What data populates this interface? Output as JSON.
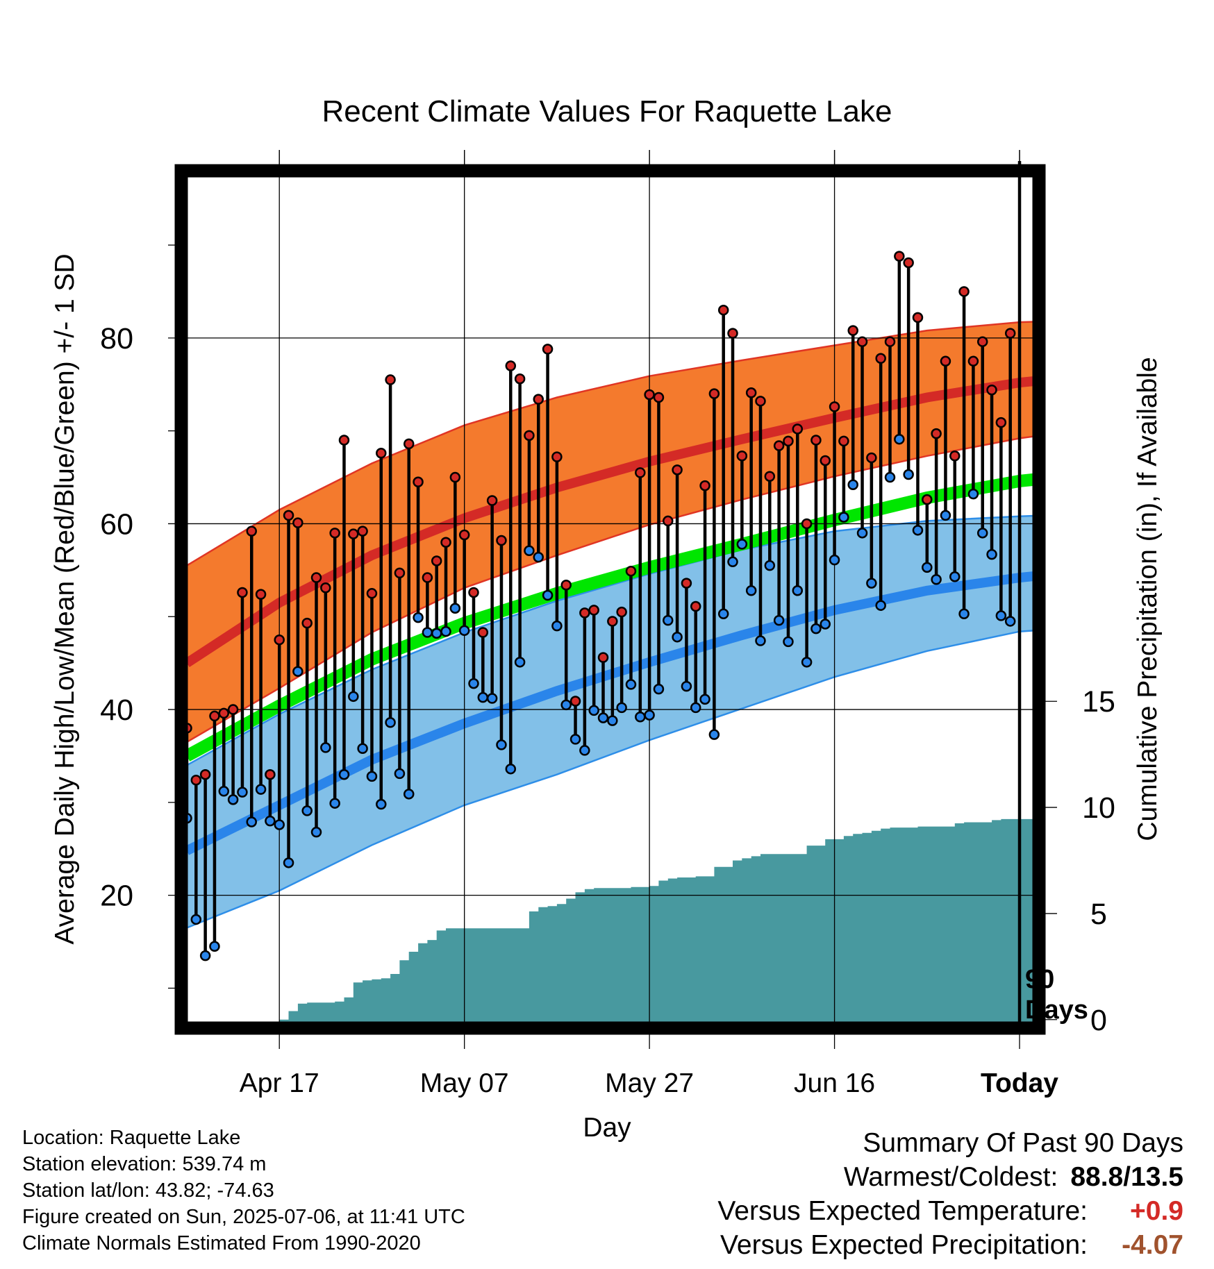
{
  "chart_data": {
    "type": "line",
    "title": "Recent Climate Values For Raquette Lake",
    "xlabel": "Day",
    "ylabel": "Average Daily High/Low/Mean (Red/Blue/Green) +/- 1 SD",
    "y2label": "Cumulative Precipitation (in), If Available",
    "ylim": [
      5.7,
      98
    ],
    "y2lim": [
      -0.4,
      40
    ],
    "x_tick_labels": [
      "Apr 17",
      "May 07",
      "May 27",
      "Jun 16",
      "Today"
    ],
    "x_tick_days": [
      10,
      30,
      50,
      70,
      90
    ],
    "y_ticks": [
      20,
      40,
      60,
      80
    ],
    "y2_ticks": [
      0,
      5,
      10,
      15
    ],
    "xlim": [
      -0.6,
      92.1
    ],
    "today_marker_day": 90,
    "today_marker_label": [
      "90",
      "Days"
    ],
    "grid": true,
    "colors": {
      "high_band": "#f47a2d",
      "high_band_edge": "#e03524",
      "high_mean": "#d42a26",
      "low_band": "#82c0e8",
      "low_band_edge": "#2e8ee8",
      "low_mean": "#2a85ea",
      "mean_band": "#00e600",
      "precip": "#48999f",
      "high_dot": "#d42a26",
      "low_dot": "#2a85ea"
    },
    "normals": {
      "days": [
        0,
        10,
        20,
        30,
        40,
        50,
        60,
        70,
        80,
        90,
        93
      ],
      "high_mean": [
        45,
        51.5,
        56.6,
        60.6,
        63.9,
        66.7,
        69.1,
        71.4,
        73.6,
        75.2,
        75.5
      ],
      "high_plus_sd": [
        55.5,
        61.5,
        66.5,
        70.6,
        73.6,
        75.9,
        77.6,
        79.2,
        80.8,
        81.7,
        81.8
      ],
      "high_minus_sd": [
        36.5,
        42.3,
        48.3,
        53.1,
        56.6,
        59.9,
        62.6,
        65.1,
        67.3,
        69.2,
        69.6
      ],
      "mean": [
        35,
        40.4,
        45.4,
        49.3,
        52.5,
        55.3,
        57.8,
        60.4,
        62.8,
        64.6,
        64.9
      ],
      "low_mean": [
        24.8,
        29.7,
        34.6,
        38.5,
        42.0,
        45.1,
        48.0,
        50.7,
        52.8,
        54.2,
        54.5
      ],
      "low_plus_sd": [
        34.0,
        39.5,
        44.3,
        48.3,
        51.7,
        54.6,
        57.2,
        59.2,
        60.3,
        60.8,
        60.9
      ],
      "low_minus_sd": [
        16.5,
        20.5,
        25.4,
        29.7,
        33.0,
        36.7,
        40.1,
        43.5,
        46.3,
        48.4,
        48.6
      ]
    },
    "series": [
      {
        "name": "Daily High",
        "x": [
          0,
          1,
          2,
          3,
          4,
          5,
          6,
          7,
          8,
          9,
          10,
          11,
          12,
          13,
          14,
          15,
          16,
          17,
          18,
          19,
          20,
          21,
          22,
          23,
          24,
          25,
          26,
          27,
          28,
          29,
          30,
          31,
          32,
          33,
          34,
          35,
          36,
          37,
          38,
          39,
          40,
          41,
          42,
          43,
          44,
          45,
          46,
          47,
          48,
          49,
          50,
          51,
          52,
          53,
          54,
          55,
          56,
          57,
          58,
          59,
          60,
          61,
          62,
          63,
          64,
          65,
          66,
          67,
          68,
          69,
          70,
          71,
          72,
          73,
          74,
          75,
          76,
          77,
          78,
          79,
          80,
          81,
          82,
          83,
          84,
          85,
          86,
          87,
          88,
          89
        ],
        "values": [
          38.0,
          32.4,
          33.0,
          39.3,
          39.6,
          40.0,
          52.6,
          59.2,
          52.4,
          33.0,
          47.5,
          60.9,
          60.1,
          49.3,
          54.2,
          53.1,
          59.0,
          69.0,
          58.9,
          59.2,
          52.5,
          67.6,
          75.5,
          54.7,
          68.6,
          64.5,
          54.2,
          56.0,
          58.0,
          65.0,
          58.8,
          52.6,
          48.3,
          62.5,
          58.2,
          77.0,
          75.6,
          69.5,
          73.4,
          78.8,
          67.2,
          53.4,
          40.9,
          50.4,
          50.7,
          45.6,
          49.5,
          50.5,
          54.9,
          65.5,
          73.9,
          73.6,
          60.3,
          65.8,
          53.6,
          51.1,
          64.1,
          74.0,
          83.0,
          80.5,
          67.3,
          74.1,
          73.2,
          65.1,
          68.4,
          68.9,
          70.2,
          60.0,
          69.0,
          66.8,
          72.6,
          68.9,
          80.8,
          79.6,
          67.1,
          77.8,
          79.6,
          88.8,
          88.1,
          82.2,
          62.6,
          69.7,
          77.5,
          67.3,
          85.0,
          77.5,
          79.6,
          74.4,
          70.9,
          80.5
        ]
      },
      {
        "name": "Daily Low",
        "x": [
          0,
          1,
          2,
          3,
          4,
          5,
          6,
          7,
          8,
          9,
          10,
          11,
          12,
          13,
          14,
          15,
          16,
          17,
          18,
          19,
          20,
          21,
          22,
          23,
          24,
          25,
          26,
          27,
          28,
          29,
          30,
          31,
          32,
          33,
          34,
          35,
          36,
          37,
          38,
          39,
          40,
          41,
          42,
          43,
          44,
          45,
          46,
          47,
          48,
          49,
          50,
          51,
          52,
          53,
          54,
          55,
          56,
          57,
          58,
          59,
          60,
          61,
          62,
          63,
          64,
          65,
          66,
          67,
          68,
          69,
          70,
          71,
          72,
          73,
          74,
          75,
          76,
          77,
          78,
          79,
          80,
          81,
          82,
          83,
          84,
          85,
          86,
          87,
          88,
          89
        ],
        "values": [
          28.3,
          17.4,
          13.5,
          14.5,
          31.2,
          30.3,
          31.1,
          27.9,
          31.4,
          28.0,
          27.6,
          23.5,
          44.1,
          29.1,
          26.8,
          35.9,
          29.9,
          33.0,
          41.4,
          35.8,
          32.8,
          29.8,
          38.6,
          33.1,
          30.9,
          49.9,
          48.3,
          48.2,
          48.4,
          50.9,
          48.5,
          42.8,
          41.3,
          41.2,
          36.2,
          33.6,
          45.1,
          57.1,
          56.4,
          52.3,
          49.0,
          40.5,
          36.8,
          35.6,
          39.9,
          39.1,
          38.8,
          40.2,
          42.7,
          39.2,
          39.4,
          42.2,
          49.6,
          47.8,
          42.5,
          40.2,
          41.1,
          37.3,
          50.3,
          55.9,
          57.8,
          52.8,
          47.4,
          55.5,
          49.6,
          47.3,
          52.8,
          45.1,
          48.7,
          49.2,
          56.1,
          60.7,
          64.2,
          59.0,
          53.6,
          51.2,
          65.0,
          69.1,
          65.3,
          59.3,
          55.3,
          54.0,
          60.9,
          54.3,
          50.3,
          63.2,
          59.0,
          56.7,
          50.1,
          49.5
        ]
      },
      {
        "name": "Cumulative Precipitation",
        "x": [
          10,
          11,
          12,
          13,
          14,
          15,
          16,
          17,
          18,
          19,
          20,
          21,
          22,
          23,
          24,
          25,
          26,
          27,
          28,
          29,
          30,
          31,
          32,
          33,
          34,
          35,
          36,
          37,
          38,
          39,
          40,
          41,
          42,
          43,
          44,
          45,
          46,
          47,
          48,
          49,
          50,
          51,
          52,
          53,
          54,
          55,
          56,
          57,
          58,
          59,
          60,
          61,
          62,
          63,
          64,
          65,
          66,
          67,
          68,
          69,
          70,
          71,
          72,
          73,
          74,
          75,
          76,
          77,
          78,
          79,
          80,
          81,
          82,
          83,
          84,
          85,
          86,
          87,
          88,
          89,
          90,
          92
        ],
        "values": [
          0.0,
          0.4,
          0.75,
          0.8,
          0.8,
          0.8,
          0.85,
          1.05,
          1.75,
          1.85,
          1.9,
          1.95,
          2.15,
          2.8,
          3.2,
          3.6,
          3.75,
          4.2,
          4.3,
          4.3,
          4.3,
          4.3,
          4.3,
          4.3,
          4.3,
          4.3,
          4.3,
          5.1,
          5.3,
          5.35,
          5.45,
          5.7,
          6.0,
          6.15,
          6.2,
          6.2,
          6.2,
          6.2,
          6.25,
          6.25,
          6.3,
          6.55,
          6.65,
          6.7,
          6.7,
          6.75,
          6.75,
          7.2,
          7.2,
          7.5,
          7.6,
          7.7,
          7.8,
          7.8,
          7.8,
          7.8,
          7.8,
          8.2,
          8.2,
          8.5,
          8.5,
          8.65,
          8.75,
          8.8,
          8.9,
          9.0,
          9.05,
          9.05,
          9.05,
          9.1,
          9.1,
          9.1,
          9.1,
          9.25,
          9.3,
          9.3,
          9.3,
          9.4,
          9.45,
          9.45,
          9.45,
          9.45
        ]
      }
    ]
  },
  "info": {
    "location": "Location: Raquette Lake",
    "elevation": "Station elevation: 539.74 m",
    "latlon": "Station lat/lon: 43.82; -74.63",
    "created": "Figure created on Sun, 2025-07-06, at 11:41 UTC",
    "normals_period": "Climate Normals Estimated From 1990-2020"
  },
  "summary": {
    "heading": "Summary Of Past 90 Days",
    "warmest_coldest_label": "Warmest/Coldest:",
    "warmest_coldest_value": "88.8/13.5",
    "temp_label": "Versus Expected Temperature:",
    "temp_value": "+0.9",
    "temp_color": "#d42a26",
    "precip_label": "Versus Expected Precipitation:",
    "precip_value": "-4.07",
    "precip_color": "#a0522d"
  }
}
